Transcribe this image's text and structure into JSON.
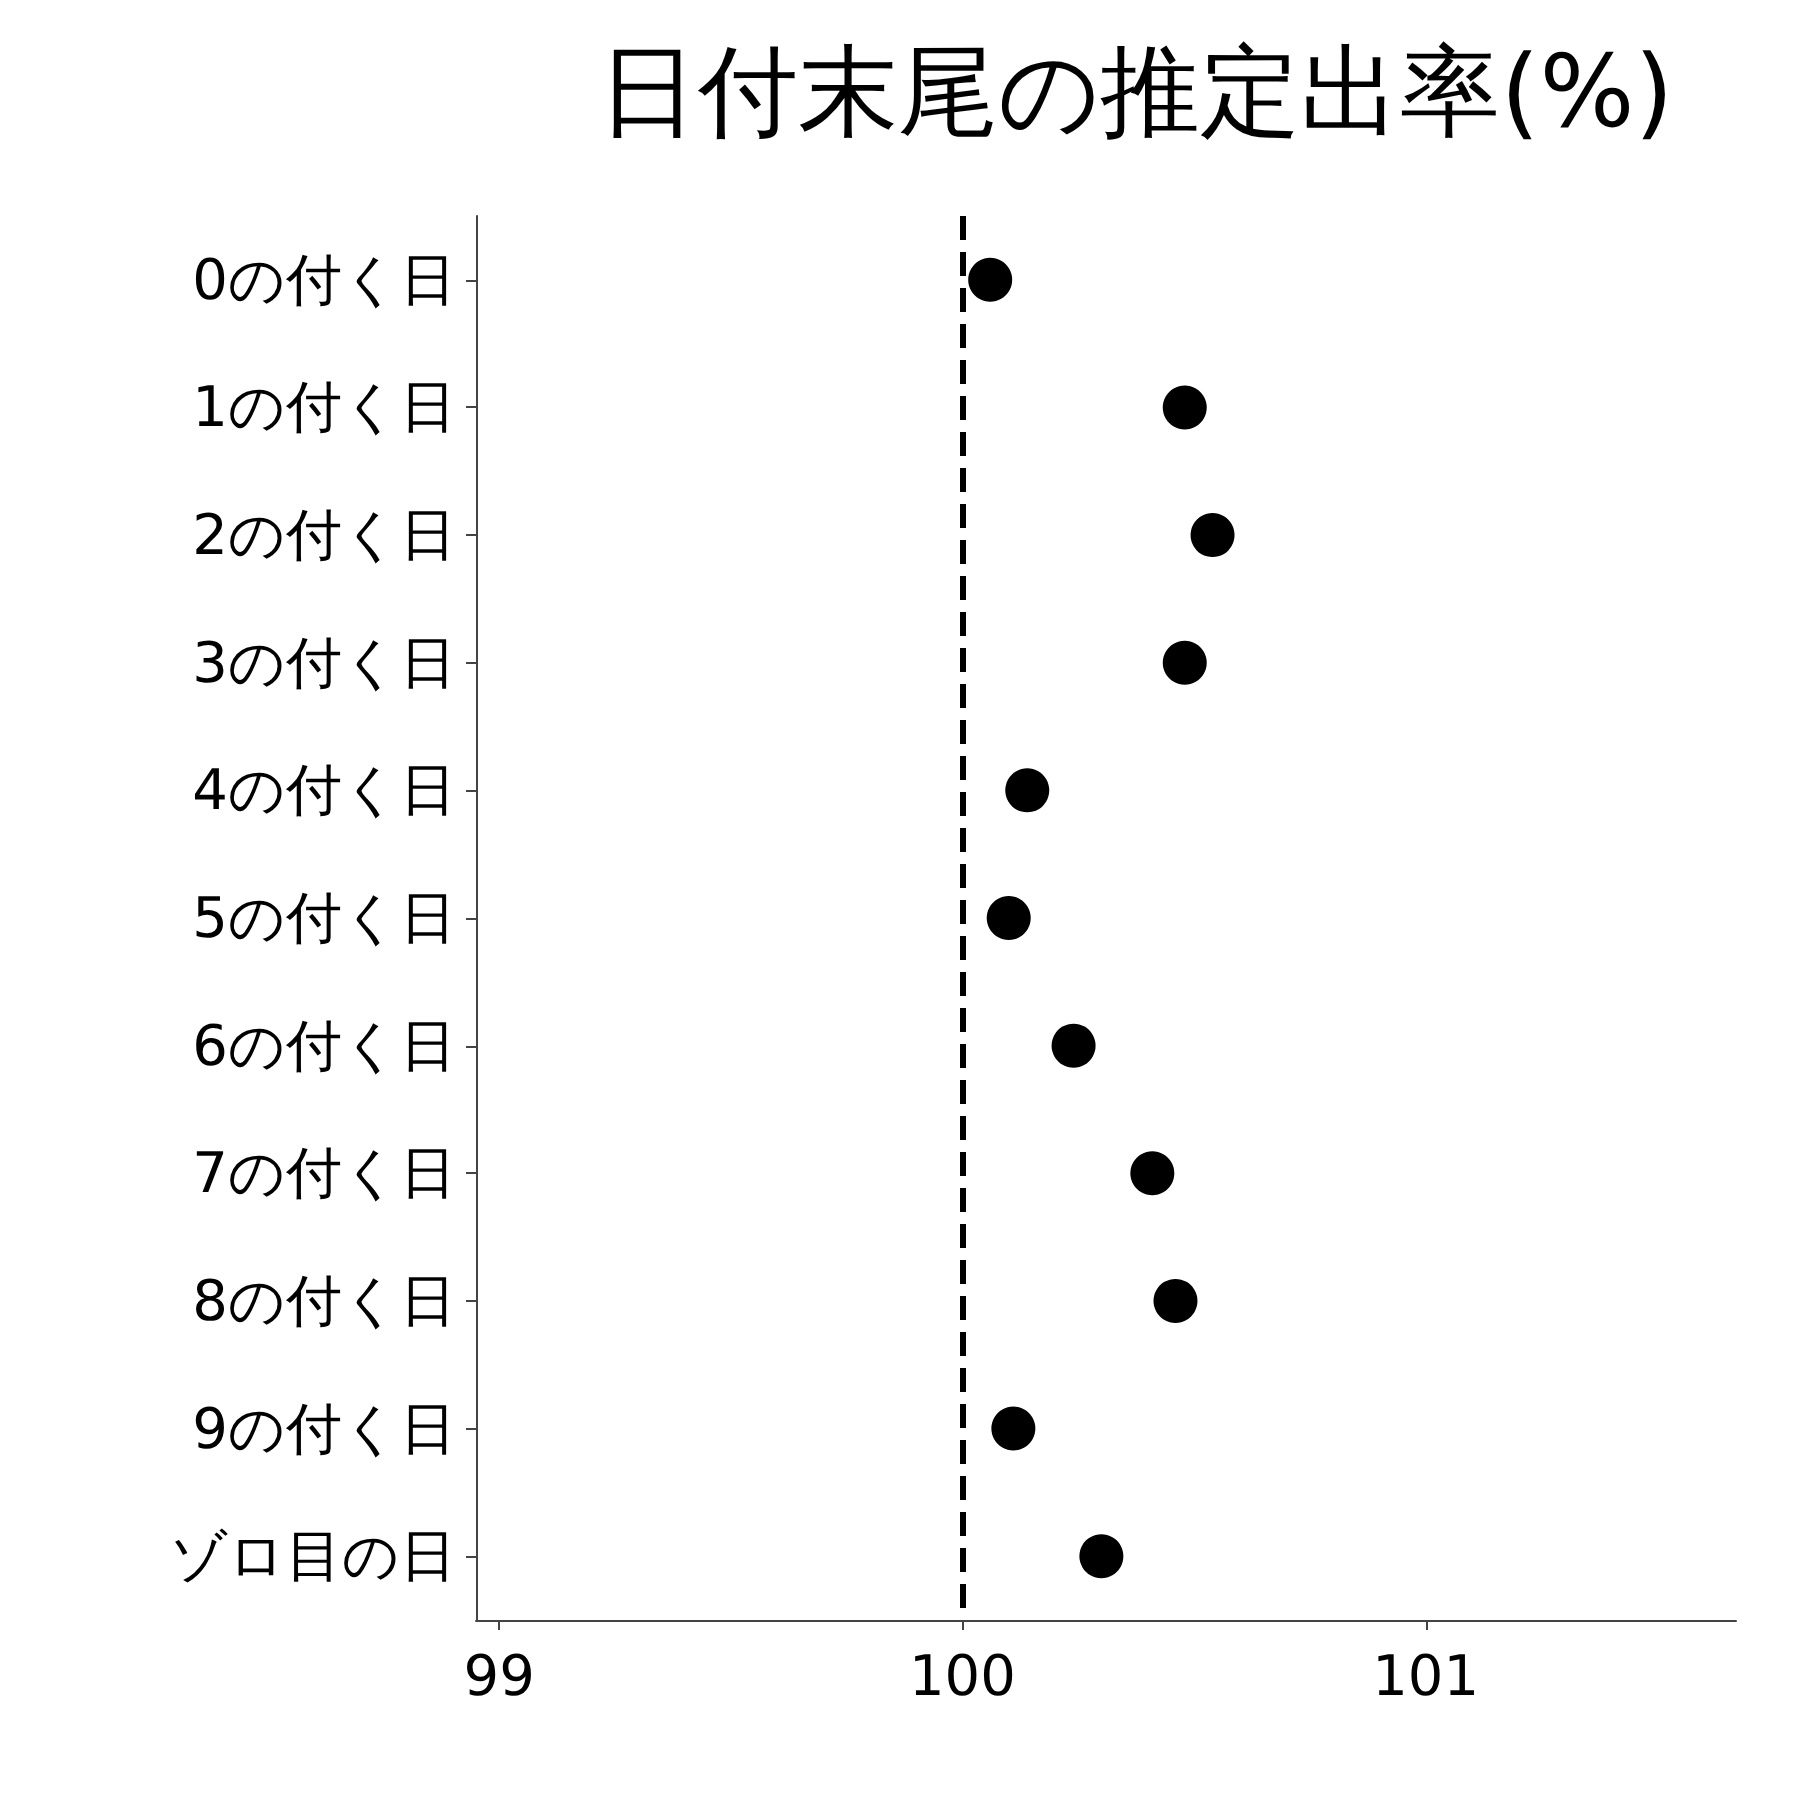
{
  "chart_data": {
    "type": "scatter",
    "title": "日付末尾の推定出率(%)",
    "orientation": "horizontal",
    "categories": [
      "0の付く日",
      "1の付く日",
      "2の付く日",
      "3の付く日",
      "4の付く日",
      "5の付く日",
      "6の付く日",
      "7の付く日",
      "8の付く日",
      "9の付く日",
      "ゾロ目の日"
    ],
    "series": [
      {
        "color": "#000000",
        "values": [
          100.06,
          100.48,
          100.54,
          100.48,
          100.14,
          100.1,
          100.24,
          100.41,
          100.46,
          100.11,
          100.3
        ]
      }
    ],
    "xlim": [
      98.95,
      101.67
    ],
    "xticks": [
      99,
      100,
      101
    ],
    "ref_lines": [
      {
        "axis": "x",
        "value": 100,
        "color": "#000000",
        "line_style": "dashed"
      }
    ],
    "grid": false,
    "marker": "circle"
  }
}
